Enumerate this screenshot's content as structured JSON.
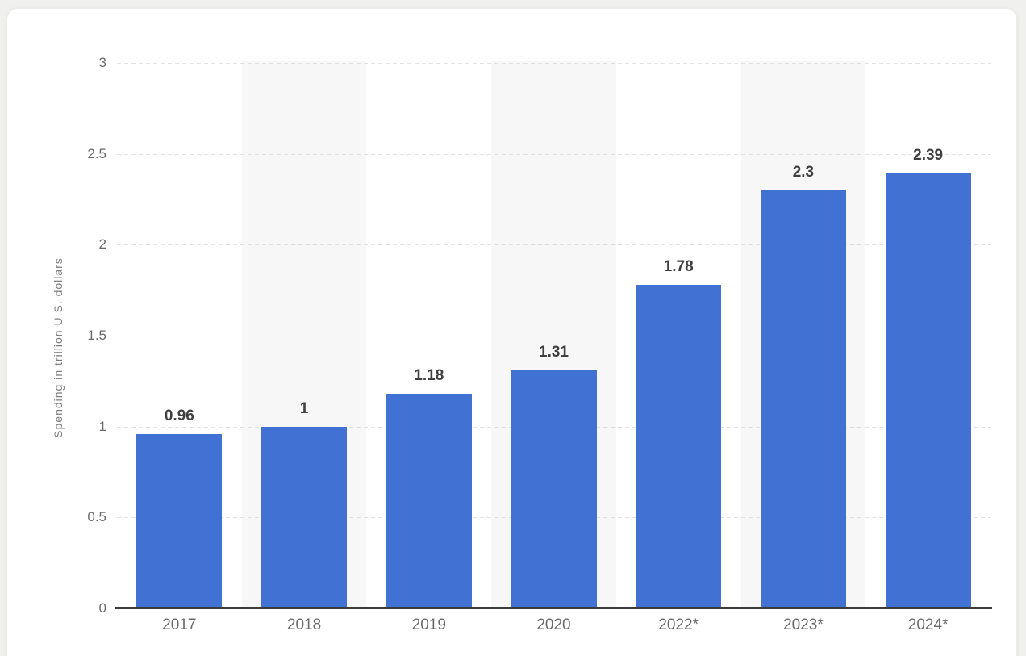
{
  "chart_data": {
    "type": "bar",
    "title": "",
    "xlabel": "",
    "ylabel": "Spending in trillion U.S. dollars",
    "categories": [
      "2017",
      "2018",
      "2019",
      "2020",
      "2022*",
      "2023*",
      "2024*"
    ],
    "values": [
      0.96,
      1,
      1.18,
      1.31,
      1.78,
      2.3,
      2.39
    ],
    "value_labels": [
      "0.96",
      "1",
      "1.18",
      "1.31",
      "1.78",
      "2.3",
      "2.39"
    ],
    "ylim": [
      0,
      3
    ],
    "yticks": [
      {
        "value": 0,
        "label": "0"
      },
      {
        "value": 0.5,
        "label": "0.5"
      },
      {
        "value": 1,
        "label": "1"
      },
      {
        "value": 1.5,
        "label": "1.5"
      },
      {
        "value": 2,
        "label": "2"
      },
      {
        "value": 2.5,
        "label": "2.5"
      },
      {
        "value": 3,
        "label": "3"
      }
    ],
    "grid": "horizontal-dashed",
    "legend": "none",
    "alternating_column_bands": true,
    "colors": {
      "bar": "#4071d3",
      "band": "#f7f7f7",
      "gridline": "#e2e2e2",
      "axis_line": "#3b3b3b",
      "tick_label": "#6b6b6b",
      "value_label": "#404040",
      "ylabel": "#7d7d7d",
      "card_background": "#ffffff",
      "page_background": "#f0f0ee"
    }
  }
}
